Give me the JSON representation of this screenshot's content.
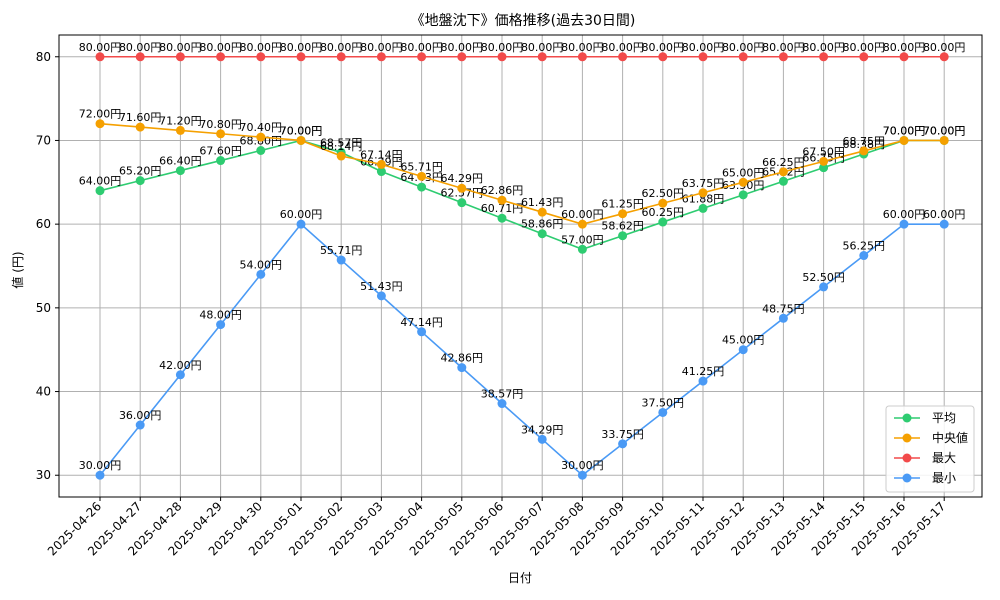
{
  "chart_data": {
    "type": "line",
    "title": "《地盤沈下》価格推移(過去30日間)",
    "xlabel": "日付",
    "ylabel": "値 (円)",
    "ylim": [
      27.4,
      82.6
    ],
    "yticks": [
      30,
      40,
      50,
      60,
      70,
      80
    ],
    "grid": true,
    "legend_position": "bottom-right",
    "label_suffix": "円",
    "categories": [
      "2025-04-26",
      "2025-04-27",
      "2025-04-28",
      "2025-04-29",
      "2025-04-30",
      "2025-05-01",
      "2025-05-02",
      "2025-05-03",
      "2025-05-04",
      "2025-05-05",
      "2025-05-06",
      "2025-05-07",
      "2025-05-08",
      "2025-05-09",
      "2025-05-10",
      "2025-05-11",
      "2025-05-12",
      "2025-05-13",
      "2025-05-14",
      "2025-05-15",
      "2025-05-16",
      "2025-05-17"
    ],
    "series": [
      {
        "name": "平均",
        "color": "#2ecc71",
        "values": [
          64.0,
          65.2,
          66.4,
          67.6,
          68.8,
          70.0,
          68.57,
          66.29,
          64.43,
          62.57,
          60.71,
          58.86,
          57.0,
          58.62,
          60.25,
          61.88,
          63.5,
          65.12,
          66.75,
          68.38,
          70.0,
          70.0
        ]
      },
      {
        "name": "中央値",
        "color": "#f5a000",
        "values": [
          72.0,
          71.6,
          71.2,
          70.8,
          70.4,
          70.0,
          68.14,
          67.14,
          65.71,
          64.29,
          62.86,
          61.43,
          60.0,
          61.25,
          62.5,
          63.75,
          65.0,
          66.25,
          67.5,
          68.75,
          70.0,
          70.0
        ]
      },
      {
        "name": "最大",
        "color": "#f24a4a",
        "values": [
          80.0,
          80.0,
          80.0,
          80.0,
          80.0,
          80.0,
          80.0,
          80.0,
          80.0,
          80.0,
          80.0,
          80.0,
          80.0,
          80.0,
          80.0,
          80.0,
          80.0,
          80.0,
          80.0,
          80.0,
          80.0,
          80.0
        ]
      },
      {
        "name": "最小",
        "color": "#4a9af5",
        "values": [
          30.0,
          36.0,
          42.0,
          48.0,
          54.0,
          60.0,
          55.71,
          51.43,
          47.14,
          42.86,
          38.57,
          34.29,
          30.0,
          33.75,
          37.5,
          41.25,
          45.0,
          48.75,
          52.5,
          56.25,
          60.0,
          60.0
        ]
      }
    ]
  }
}
